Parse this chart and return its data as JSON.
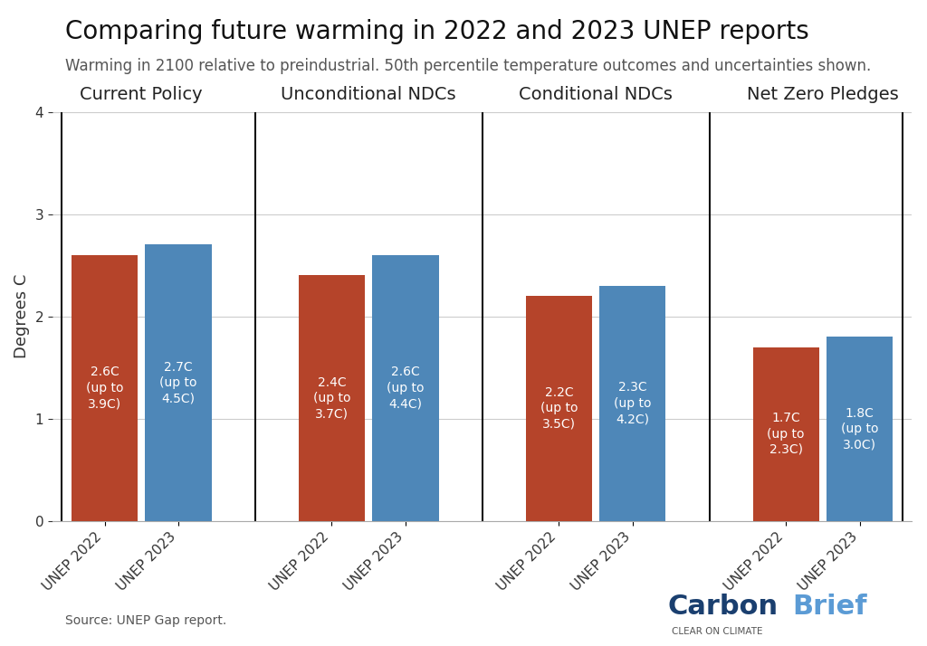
{
  "title": "Comparing future warming in 2022 and 2023 UNEP reports",
  "subtitle": "Warming in 2100 relative to preindustrial. 50th percentile temperature outcomes and uncertainties shown.",
  "ylabel": "Degrees C",
  "source": "Source: UNEP Gap report.",
  "ylim": [
    0,
    4
  ],
  "yticks": [
    0,
    1,
    2,
    3,
    4
  ],
  "categories": [
    "Current Policy",
    "Unconditional NDCs",
    "Conditional NDCs",
    "Net Zero Pledges"
  ],
  "bars": [
    {
      "category": "Current Policy",
      "year": "UNEP 2022",
      "value": 2.6,
      "upper": 3.9,
      "label": "2.6C\n(up to\n3.9C)"
    },
    {
      "category": "Current Policy",
      "year": "UNEP 2023",
      "value": 2.7,
      "upper": 4.5,
      "label": "2.7C\n(up to\n4.5C)"
    },
    {
      "category": "Unconditional NDCs",
      "year": "UNEP 2022",
      "value": 2.4,
      "upper": 3.7,
      "label": "2.4C\n(up to\n3.7C)"
    },
    {
      "category": "Unconditional NDCs",
      "year": "UNEP 2023",
      "value": 2.6,
      "upper": 4.4,
      "label": "2.6C\n(up to\n4.4C)"
    },
    {
      "category": "Conditional NDCs",
      "year": "UNEP 2022",
      "value": 2.2,
      "upper": 3.5,
      "label": "2.2C\n(up to\n3.5C)"
    },
    {
      "category": "Conditional NDCs",
      "year": "UNEP 2023",
      "value": 2.3,
      "upper": 4.2,
      "label": "2.3C\n(up to\n4.2C)"
    },
    {
      "category": "Net Zero Pledges",
      "year": "UNEP 2022",
      "value": 1.7,
      "upper": 2.3,
      "label": "1.7C\n(up to\n2.3C)"
    },
    {
      "category": "Net Zero Pledges",
      "year": "UNEP 2023",
      "value": 1.8,
      "upper": 3.0,
      "label": "1.8C\n(up to\n3.0C)"
    }
  ],
  "color_2022": "#b5442a",
  "color_2023": "#4e87b8",
  "bar_width": 0.35,
  "divider_color": "#111111",
  "bg_color": "#ffffff",
  "grid_color": "#cccccc",
  "title_fontsize": 20,
  "subtitle_fontsize": 12,
  "label_fontsize": 10,
  "tick_fontsize": 11,
  "category_fontsize": 14,
  "ylabel_fontsize": 13,
  "carbonbrief_dark": "#1a3f6f",
  "carbonbrief_light": "#5b9bd5"
}
